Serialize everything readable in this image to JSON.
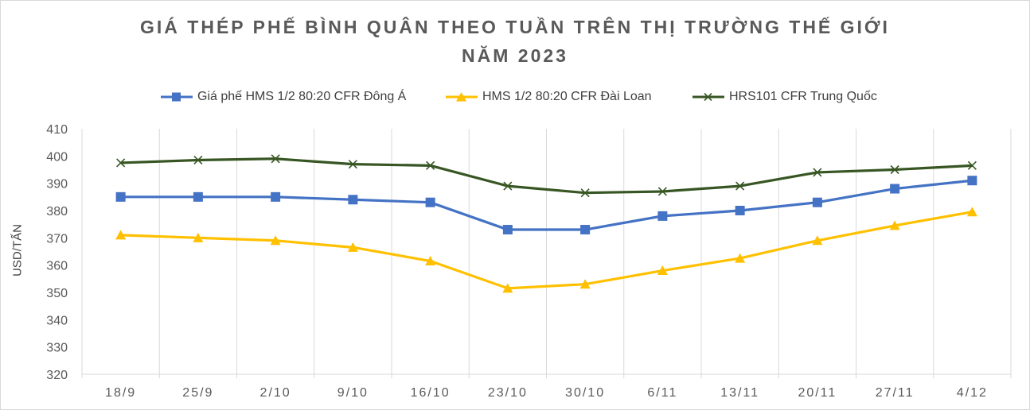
{
  "chart_data": {
    "type": "line",
    "title_line1": "GIÁ THÉP PHẾ BÌNH QUÂN THEO TUẦN TRÊN THỊ TRƯỜNG THẾ GIỚI",
    "title_line2": "NĂM 2023",
    "xlabel": "",
    "ylabel": "USD/TẤN",
    "ylim": [
      320,
      410
    ],
    "yticks": [
      320,
      330,
      340,
      350,
      360,
      370,
      380,
      390,
      400,
      410
    ],
    "categories": [
      "18/9",
      "25/9",
      "2/10",
      "9/10",
      "16/10",
      "23/10",
      "30/10",
      "6/11",
      "13/11",
      "20/11",
      "27/11",
      "4/12"
    ],
    "grid": "vertical",
    "legend_position": "top",
    "series": [
      {
        "name": "Giá phế HMS 1/2 80:20 CFR Đông Á",
        "color": "#4472C4",
        "marker": "square",
        "values": [
          385,
          385,
          385,
          384,
          383,
          373,
          373,
          378,
          380,
          383,
          388,
          391
        ]
      },
      {
        "name": "HMS 1/2 80:20 CFR Đài Loan",
        "color": "#FFC000",
        "marker": "triangle",
        "values": [
          371,
          370,
          369,
          366.5,
          361.5,
          351.5,
          353,
          358,
          362.5,
          369,
          374.5,
          379.5
        ]
      },
      {
        "name": "HRS101 CFR Trung Quốc",
        "color": "#375623",
        "marker": "x",
        "values": [
          397.5,
          398.5,
          399,
          397,
          396.5,
          389,
          386.5,
          387,
          389,
          394,
          395,
          396.5
        ]
      }
    ]
  }
}
